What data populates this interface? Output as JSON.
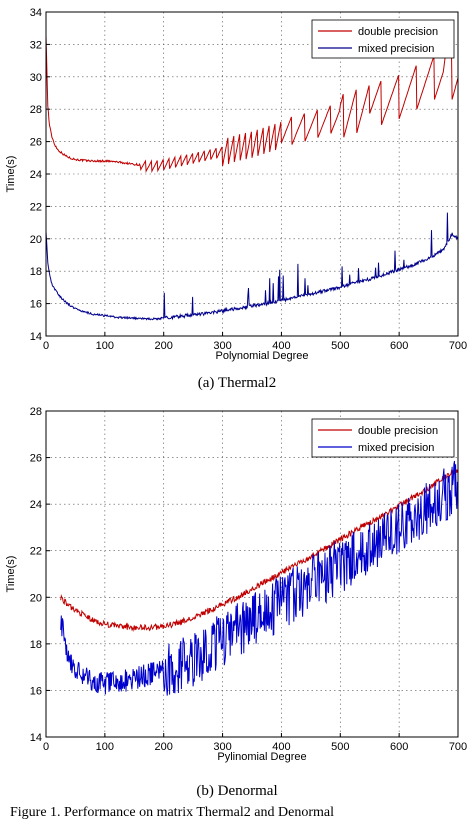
{
  "chart_data": [
    {
      "type": "line",
      "caption": "(a) Thermal2",
      "xlabel": "Polynomial Degree",
      "ylabel": "Time(s)",
      "xlim": [
        0,
        700
      ],
      "ylim": [
        14,
        34
      ],
      "xticks": [
        0,
        100,
        200,
        300,
        400,
        500,
        600,
        700
      ],
      "yticks": [
        14,
        16,
        18,
        20,
        22,
        24,
        26,
        28,
        30,
        32,
        34
      ],
      "grid": true,
      "legend_position": "top-right",
      "series": [
        {
          "name": "double precision",
          "color": "#c00000",
          "x": [
            0,
            3,
            6,
            10,
            15,
            20,
            30,
            40,
            50,
            60,
            80,
            100,
            120,
            150,
            175,
            200,
            225,
            250,
            275,
            300,
            325,
            350,
            375,
            400,
            425,
            450,
            475,
            500,
            525,
            550,
            575,
            600,
            625,
            650,
            675,
            680,
            690,
            700
          ],
          "y": [
            32.6,
            28.2,
            27.0,
            26.3,
            25.8,
            25.5,
            25.2,
            25.0,
            24.9,
            24.85,
            24.8,
            24.8,
            24.75,
            24.6,
            24.5,
            24.6,
            24.8,
            25.0,
            25.2,
            25.4,
            25.7,
            25.9,
            26.2,
            26.5,
            26.8,
            27.0,
            27.3,
            27.6,
            27.9,
            28.2,
            28.5,
            28.8,
            29.3,
            29.8,
            30.3,
            31.3,
            30.0,
            30.4
          ]
        },
        {
          "name": "mixed precision",
          "color": "#00008b",
          "x": [
            0,
            3,
            6,
            10,
            15,
            20,
            30,
            40,
            50,
            60,
            80,
            100,
            120,
            150,
            175,
            200,
            225,
            250,
            275,
            300,
            325,
            350,
            375,
            400,
            425,
            450,
            475,
            500,
            525,
            550,
            575,
            600,
            625,
            650,
            675,
            690,
            700
          ],
          "y": [
            20.5,
            18.5,
            17.8,
            17.2,
            16.9,
            16.6,
            16.2,
            15.9,
            15.7,
            15.55,
            15.35,
            15.25,
            15.15,
            15.1,
            15.05,
            15.1,
            15.2,
            15.3,
            15.4,
            15.55,
            15.7,
            15.85,
            16.0,
            16.2,
            16.4,
            16.6,
            16.8,
            17.0,
            17.3,
            17.5,
            17.8,
            18.1,
            18.4,
            18.8,
            19.3,
            20.3,
            20.0
          ]
        }
      ]
    },
    {
      "type": "line",
      "caption": "(b) Denormal",
      "xlabel": "Pylinomial Degree",
      "ylabel": "Time(s)",
      "xlim": [
        0,
        700
      ],
      "ylim": [
        14,
        28
      ],
      "xticks": [
        0,
        100,
        200,
        300,
        400,
        500,
        600,
        700
      ],
      "yticks": [
        14,
        16,
        18,
        20,
        22,
        24,
        26,
        28
      ],
      "grid": true,
      "legend_position": "top-right",
      "series": [
        {
          "name": "double precision",
          "color": "#c00000",
          "x": [
            25,
            40,
            60,
            80,
            100,
            125,
            150,
            175,
            200,
            225,
            250,
            275,
            300,
            325,
            350,
            375,
            400,
            425,
            450,
            475,
            500,
            525,
            550,
            575,
            600,
            625,
            650,
            675,
            700
          ],
          "y": [
            20.0,
            19.6,
            19.3,
            19.0,
            18.85,
            18.75,
            18.7,
            18.7,
            18.75,
            18.9,
            19.1,
            19.4,
            19.7,
            20.0,
            20.35,
            20.7,
            21.05,
            21.4,
            21.75,
            22.1,
            22.5,
            22.85,
            23.2,
            23.55,
            23.95,
            24.3,
            24.7,
            25.1,
            25.5
          ]
        },
        {
          "name": "mixed precision",
          "color": "#0000cc",
          "x": [
            25,
            35,
            50,
            70,
            90,
            110,
            130,
            150,
            175,
            200,
            225,
            250,
            275,
            300,
            325,
            350,
            375,
            400,
            425,
            450,
            475,
            500,
            525,
            550,
            575,
            600,
            625,
            650,
            675,
            700
          ],
          "y": [
            19.2,
            17.8,
            17.0,
            16.6,
            16.4,
            16.4,
            16.5,
            16.6,
            16.8,
            17.0,
            17.3,
            17.6,
            18.0,
            18.4,
            18.8,
            19.2,
            19.6,
            20.0,
            20.4,
            20.8,
            21.2,
            21.6,
            22.0,
            22.4,
            22.8,
            23.2,
            23.7,
            24.2,
            24.6,
            25.0
          ]
        }
      ]
    }
  ],
  "figure_caption": "Figure 1.   Performance on matrix Thermal2 and Denormal"
}
